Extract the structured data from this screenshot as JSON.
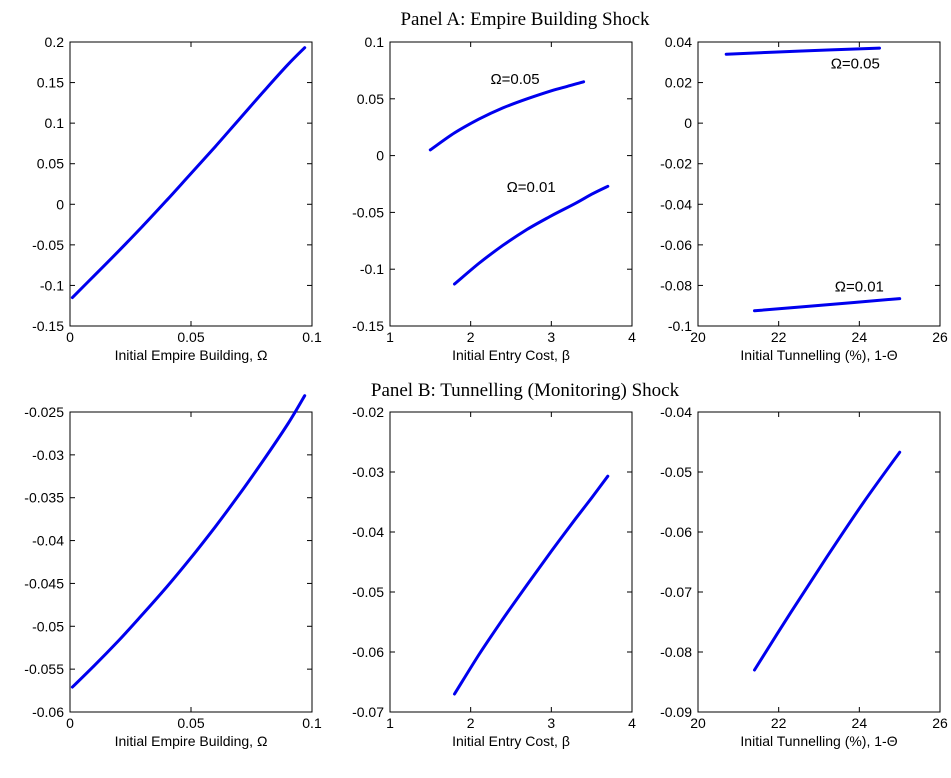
{
  "panels": [
    {
      "title": "Panel A: Empire Building Shock"
    },
    {
      "title": "Panel B: Tunnelling (Monitoring) Shock"
    }
  ],
  "line_color": "#0000ee",
  "chart_data": [
    {
      "type": "line",
      "panel": 0,
      "col": 0,
      "xlabel": "Initial Empire Building, Ω",
      "xlim": [
        0,
        0.1
      ],
      "ylim": [
        -0.15,
        0.2
      ],
      "xticks": [
        0,
        0.05,
        0.1
      ],
      "xticklabels": [
        "0",
        "0.05",
        "0.1"
      ],
      "yticks": [
        -0.15,
        -0.1,
        -0.05,
        0,
        0.05,
        0.1,
        0.15,
        0.2
      ],
      "yticklabels": [
        "-0.15",
        "-0.1",
        "-0.05",
        "0",
        "0.05",
        "0.1",
        "0.15",
        "0.2"
      ],
      "series": [
        {
          "x": [
            0.001,
            0.01,
            0.02,
            0.03,
            0.04,
            0.05,
            0.06,
            0.07,
            0.08,
            0.09,
            0.097
          ],
          "y": [
            -0.115,
            -0.088,
            -0.058,
            -0.027,
            0.005,
            0.038,
            0.071,
            0.105,
            0.139,
            0.172,
            0.193
          ]
        }
      ],
      "annotations": []
    },
    {
      "type": "line",
      "panel": 0,
      "col": 1,
      "xlabel": "Initial Entry Cost, β",
      "xlim": [
        1,
        4
      ],
      "ylim": [
        -0.15,
        0.1
      ],
      "xticks": [
        1,
        2,
        3,
        4
      ],
      "xticklabels": [
        "1",
        "2",
        "3",
        "4"
      ],
      "yticks": [
        -0.15,
        -0.1,
        -0.05,
        0,
        0.05,
        0.1
      ],
      "yticklabels": [
        "-0.15",
        "-0.1",
        "-0.05",
        "0",
        "0.05",
        "0.1"
      ],
      "series": [
        {
          "name": "Ω=0.05",
          "x": [
            1.5,
            1.8,
            2.1,
            2.4,
            2.7,
            3.0,
            3.2,
            3.4
          ],
          "y": [
            0.005,
            0.02,
            0.032,
            0.042,
            0.05,
            0.057,
            0.061,
            0.065
          ]
        },
        {
          "name": "Ω=0.01",
          "x": [
            1.8,
            2.1,
            2.4,
            2.7,
            3.0,
            3.3,
            3.5,
            3.7
          ],
          "y": [
            -0.113,
            -0.095,
            -0.079,
            -0.065,
            -0.053,
            -0.042,
            -0.034,
            -0.027
          ]
        }
      ],
      "annotations": [
        {
          "text": "Ω=0.05",
          "x": 2.55,
          "y": 0.063
        },
        {
          "text": "Ω=0.01",
          "x": 2.75,
          "y": -0.032
        }
      ]
    },
    {
      "type": "line",
      "panel": 0,
      "col": 2,
      "xlabel": "Initial Tunnelling (%), 1-Θ",
      "xlim": [
        20,
        26
      ],
      "ylim": [
        -0.1,
        0.04
      ],
      "xticks": [
        20,
        22,
        24,
        26
      ],
      "xticklabels": [
        "20",
        "22",
        "24",
        "26"
      ],
      "yticks": [
        -0.1,
        -0.08,
        -0.06,
        -0.04,
        -0.02,
        0,
        0.02,
        0.04
      ],
      "yticklabels": [
        "-0.1",
        "-0.08",
        "-0.06",
        "-0.04",
        "-0.02",
        "0",
        "0.02",
        "0.04"
      ],
      "series": [
        {
          "name": "Ω=0.05",
          "x": [
            20.7,
            22.5,
            24.5
          ],
          "y": [
            0.034,
            0.0355,
            0.037
          ]
        },
        {
          "name": "Ω=0.01",
          "x": [
            21.4,
            23.2,
            25.0
          ],
          "y": [
            -0.0925,
            -0.0895,
            -0.0865
          ]
        }
      ],
      "annotations": [
        {
          "text": "Ω=0.05",
          "x": 23.9,
          "y": 0.027
        },
        {
          "text": "Ω=0.01",
          "x": 24.0,
          "y": -0.083
        }
      ]
    },
    {
      "type": "line",
      "panel": 1,
      "col": 0,
      "xlabel": "Initial Empire Building, Ω",
      "xlim": [
        0,
        0.1
      ],
      "ylim": [
        -0.06,
        -0.025
      ],
      "xticks": [
        0,
        0.05,
        0.1
      ],
      "xticklabels": [
        "0",
        "0.05",
        "0.1"
      ],
      "yticks": [
        -0.06,
        -0.055,
        -0.05,
        -0.045,
        -0.04,
        -0.035,
        -0.03,
        -0.025
      ],
      "yticklabels": [
        "-0.06",
        "-0.055",
        "-0.05",
        "-0.045",
        "-0.04",
        "-0.035",
        "-0.03",
        "-0.025"
      ],
      "series": [
        {
          "x": [
            0.001,
            0.01,
            0.02,
            0.03,
            0.04,
            0.05,
            0.06,
            0.07,
            0.08,
            0.09,
            0.097
          ],
          "y": [
            -0.0571,
            -0.0546,
            -0.0517,
            -0.0486,
            -0.0454,
            -0.042,
            -0.0384,
            -0.0346,
            -0.0306,
            -0.0264,
            -0.0231
          ]
        }
      ],
      "annotations": []
    },
    {
      "type": "line",
      "panel": 1,
      "col": 1,
      "xlabel": "Initial Entry Cost, β",
      "xlim": [
        1,
        4
      ],
      "ylim": [
        -0.07,
        -0.02
      ],
      "xticks": [
        1,
        2,
        3,
        4
      ],
      "xticklabels": [
        "1",
        "2",
        "3",
        "4"
      ],
      "yticks": [
        -0.07,
        -0.06,
        -0.05,
        -0.04,
        -0.03,
        -0.02
      ],
      "yticklabels": [
        "-0.07",
        "-0.06",
        "-0.05",
        "-0.04",
        "-0.03",
        "-0.02"
      ],
      "series": [
        {
          "x": [
            1.8,
            2.1,
            2.4,
            2.7,
            3.0,
            3.3,
            3.5,
            3.7
          ],
          "y": [
            -0.067,
            -0.0605,
            -0.0545,
            -0.0488,
            -0.0432,
            -0.0378,
            -0.0343,
            -0.0307
          ]
        }
      ],
      "annotations": []
    },
    {
      "type": "line",
      "panel": 1,
      "col": 2,
      "xlabel": "Initial Tunnelling (%), 1-Θ",
      "xlim": [
        20,
        26
      ],
      "ylim": [
        -0.09,
        -0.04
      ],
      "xticks": [
        20,
        22,
        24,
        26
      ],
      "xticklabels": [
        "20",
        "22",
        "24",
        "26"
      ],
      "yticks": [
        -0.09,
        -0.08,
        -0.07,
        -0.06,
        -0.05,
        -0.04
      ],
      "yticklabels": [
        "-0.09",
        "-0.08",
        "-0.07",
        "-0.06",
        "-0.05",
        "-0.04"
      ],
      "series": [
        {
          "x": [
            21.4,
            22.3,
            23.2,
            24.1,
            25.0
          ],
          "y": [
            -0.083,
            -0.0734,
            -0.0641,
            -0.0551,
            -0.0467
          ]
        }
      ],
      "annotations": []
    }
  ]
}
